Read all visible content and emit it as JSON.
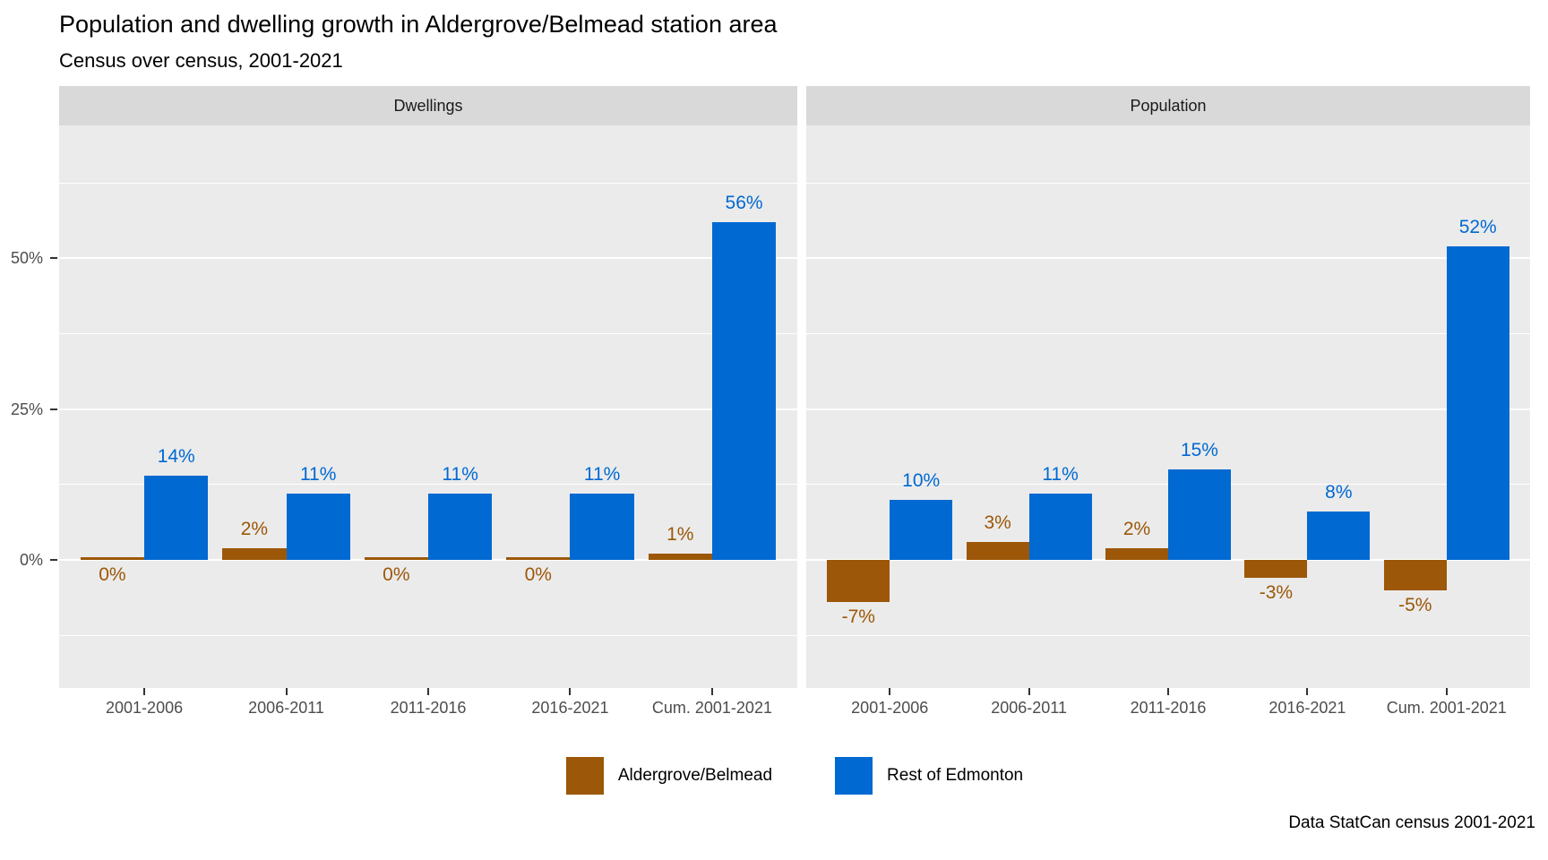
{
  "title": "Population and dwelling growth in Aldergrove/Belmead station area",
  "subtitle": "Census over census, 2001-2021",
  "caption": "Data StatCan census 2001-2021",
  "colors": {
    "aldergrove": "#9c5708",
    "edmonton": "#0069d2",
    "panel_bg": "#ebebeb",
    "strip_bg": "#d9d9d9",
    "gridline": "#ffffff",
    "axis_text": "#4d4d4d"
  },
  "legend": {
    "items": [
      {
        "label": "Aldergrove/Belmead",
        "color": "#9c5708"
      },
      {
        "label": "Rest of Edmonton",
        "color": "#0069d2"
      }
    ]
  },
  "y_axis": {
    "tick_labels": [
      "50%",
      "25%",
      "0%"
    ],
    "tick_values": [
      50,
      25,
      0
    ],
    "range": [
      -21.2,
      72
    ],
    "major_gridlines": [
      0,
      25,
      50
    ],
    "minor_gridlines": [
      -12.5,
      12.5,
      37.5,
      62.5
    ]
  },
  "chart_data": {
    "type": "bar",
    "title": "Population and dwelling growth in Aldergrove/Belmead station area",
    "subtitle": "Census over census, 2001-2021",
    "categories": [
      "2001-2006",
      "2006-2011",
      "2011-2016",
      "2016-2021",
      "Cum. 2001-2021"
    ],
    "ylim": [
      -21.2,
      72
    ],
    "grid": "on",
    "legend_position": "bottom",
    "facets": [
      {
        "label": "Dwellings",
        "series": [
          {
            "name": "Aldergrove/Belmead",
            "color": "#9c5708",
            "values": [
              0,
              2,
              0,
              0,
              1
            ],
            "labels": [
              "0%",
              "2%",
              "0%",
              "0%",
              "1%"
            ]
          },
          {
            "name": "Rest of Edmonton",
            "color": "#0069d2",
            "values": [
              14,
              11,
              11,
              11,
              56
            ],
            "labels": [
              "14%",
              "11%",
              "11%",
              "11%",
              "56%"
            ]
          }
        ]
      },
      {
        "label": "Population",
        "series": [
          {
            "name": "Aldergrove/Belmead",
            "color": "#9c5708",
            "values": [
              -7,
              3,
              2,
              -3,
              -5
            ],
            "labels": [
              "-7%",
              "3%",
              "2%",
              "-3%",
              "-5%"
            ]
          },
          {
            "name": "Rest of Edmonton",
            "color": "#0069d2",
            "values": [
              10,
              11,
              15,
              8,
              52
            ],
            "labels": [
              "10%",
              "11%",
              "15%",
              "8%",
              "52%"
            ]
          }
        ]
      }
    ]
  }
}
